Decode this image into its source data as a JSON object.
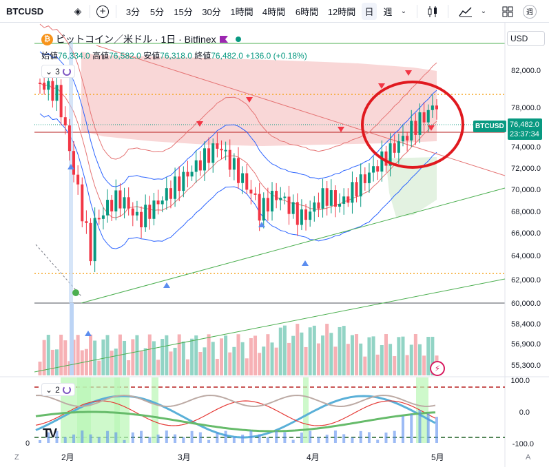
{
  "toolbar": {
    "symbol": "BTCUSD",
    "intervals": [
      "3分",
      "5分",
      "15分",
      "30分",
      "1時間",
      "4時間",
      "6時間",
      "12時間",
      "日",
      "週"
    ],
    "active_interval": "日",
    "right_badge": "週"
  },
  "legend": {
    "title": "ビットコイン／米ドル · 1日 · Bitfinex",
    "open_label": "始値",
    "open": "76,334.0",
    "high_label": "高値",
    "high": "76,582.0",
    "low_label": "安値",
    "low": "76,318.0",
    "close_label": "終値",
    "close": "76,482.0",
    "change": "+136.0 (+0.18%)"
  },
  "pane1_collapse": "3",
  "pane2_collapse": "2",
  "currency": "USD",
  "last_price": {
    "symbol": "BTCUSD",
    "price": "76,482.0",
    "countdown": "23:37:34"
  },
  "price_axis": [
    "82,000.0",
    "78,000.0",
    "74,000.0",
    "72,000.0",
    "70,000.0",
    "68,000.0",
    "66,000.0",
    "64,000.0",
    "62,000.0",
    "60,000.0",
    "58,400.0",
    "56,900.0",
    "55,300.0"
  ],
  "osc_axis": [
    "100.0",
    "0.0",
    "-100.0"
  ],
  "date_axis": [
    "2月",
    "3月",
    "4月",
    "5月"
  ],
  "corner_left": "Z",
  "corner_right": "A",
  "volume_zero": "0",
  "colors": {
    "up": "#089981",
    "down": "#f23645",
    "cloud": "#f7c9c9",
    "annotation": "#e0191f"
  }
}
